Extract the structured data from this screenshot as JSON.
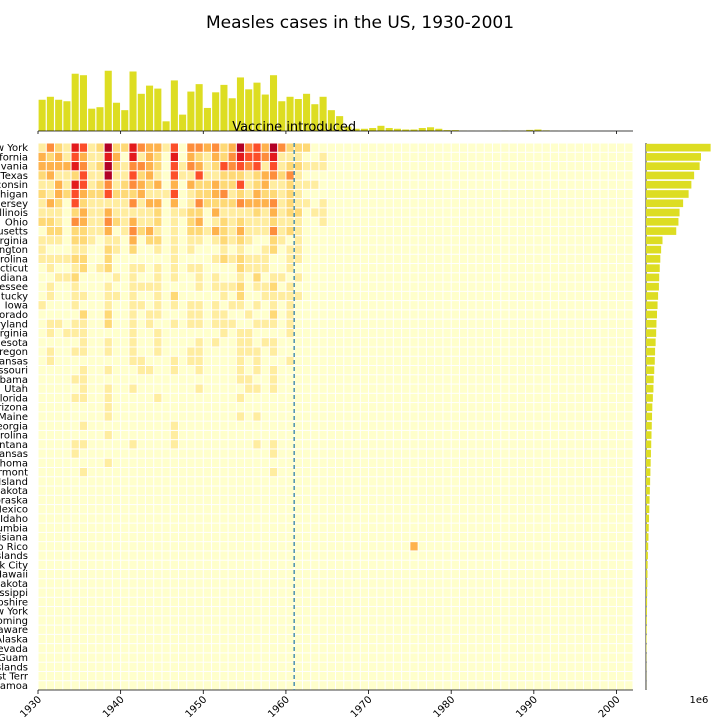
{
  "chart_data": {
    "type": "heatmap",
    "title": "Measles cases in the US, 1930-2001",
    "annotation": "Vaccine introduced",
    "vaccine_year": 1961,
    "x_range": [
      1930,
      2002
    ],
    "x_ticks": [
      1930,
      1940,
      1950,
      1960,
      1970,
      1980,
      1990,
      2000
    ],
    "offset_text": "1e6",
    "colors": {
      "bars": "#dddd22",
      "vline": "#4a90b0",
      "scale": [
        "#ffffcc",
        "#ffeda0",
        "#fed976",
        "#feb24c",
        "#fd8d3c",
        "#fc4e2a",
        "#e31a1c",
        "#b10026"
      ]
    },
    "states": [
      "New York",
      "California",
      "Pennsylvania",
      "Texas",
      "Wisconsin",
      "Michigan",
      "New Jersey",
      "Illinois",
      "Ohio",
      "Massachusetts",
      "Virginia",
      "Washington",
      "North Carolina",
      "Connecticut",
      "Indiana",
      "Tennessee",
      "Kentucky",
      "Iowa",
      "Colorado",
      "Maryland",
      "West Virginia",
      "Minnesota",
      "Oregon",
      "Kansas",
      "Missouri",
      "Alabama",
      "Utah",
      "Florida",
      "Arizona",
      "Maine",
      "Georgia",
      "South Carolina",
      "Montana",
      "Arkansas",
      "Oklahoma",
      "Vermont",
      "Rhode Island",
      "North Dakota",
      "Nebraska",
      "New Mexico",
      "Idaho",
      "District of Columbia",
      "Louisiana",
      "Puerto Rico",
      "Virgin Islands",
      "New York City",
      "Hawaii",
      "South Dakota",
      "Mississippi",
      "New Hampshire",
      "Upstate New York",
      "Wyoming",
      "Delaware",
      "Alaska",
      "Nevada",
      "Guam",
      "Northern Mariana Islands",
      "Pacific Trust Terr",
      "American Samoa"
    ],
    "state_totals": [
      2.35,
      2.0,
      1.95,
      1.75,
      1.65,
      1.55,
      1.35,
      1.22,
      1.18,
      1.1,
      0.6,
      0.55,
      0.52,
      0.5,
      0.48,
      0.47,
      0.44,
      0.42,
      0.4,
      0.38,
      0.37,
      0.35,
      0.33,
      0.32,
      0.3,
      0.28,
      0.27,
      0.25,
      0.23,
      0.22,
      0.21,
      0.2,
      0.19,
      0.18,
      0.17,
      0.16,
      0.15,
      0.14,
      0.13,
      0.12,
      0.11,
      0.1,
      0.09,
      0.08,
      0.07,
      0.06,
      0.055,
      0.05,
      0.045,
      0.04,
      0.035,
      0.03,
      0.025,
      0.02,
      0.015,
      0.01,
      0.008,
      0.005,
      0.003
    ],
    "yearly_totals": [
      {
        "year": 1930,
        "value": 0.42
      },
      {
        "year": 1931,
        "value": 0.46
      },
      {
        "year": 1932,
        "value": 0.42
      },
      {
        "year": 1933,
        "value": 0.4
      },
      {
        "year": 1934,
        "value": 0.77
      },
      {
        "year": 1935,
        "value": 0.75
      },
      {
        "year": 1936,
        "value": 0.3
      },
      {
        "year": 1937,
        "value": 0.32
      },
      {
        "year": 1938,
        "value": 0.81
      },
      {
        "year": 1939,
        "value": 0.38
      },
      {
        "year": 1940,
        "value": 0.28
      },
      {
        "year": 1941,
        "value": 0.8
      },
      {
        "year": 1942,
        "value": 0.5
      },
      {
        "year": 1943,
        "value": 0.61
      },
      {
        "year": 1944,
        "value": 0.57
      },
      {
        "year": 1945,
        "value": 0.13
      },
      {
        "year": 1946,
        "value": 0.68
      },
      {
        "year": 1947,
        "value": 0.22
      },
      {
        "year": 1948,
        "value": 0.53
      },
      {
        "year": 1949,
        "value": 0.63
      },
      {
        "year": 1950,
        "value": 0.31
      },
      {
        "year": 1951,
        "value": 0.52
      },
      {
        "year": 1952,
        "value": 0.62
      },
      {
        "year": 1953,
        "value": 0.44
      },
      {
        "year": 1954,
        "value": 0.72
      },
      {
        "year": 1955,
        "value": 0.56
      },
      {
        "year": 1956,
        "value": 0.65
      },
      {
        "year": 1957,
        "value": 0.49
      },
      {
        "year": 1958,
        "value": 0.75
      },
      {
        "year": 1959,
        "value": 0.4
      },
      {
        "year": 1960,
        "value": 0.46
      },
      {
        "year": 1961,
        "value": 0.43
      },
      {
        "year": 1962,
        "value": 0.5
      },
      {
        "year": 1963,
        "value": 0.36
      },
      {
        "year": 1964,
        "value": 0.46
      },
      {
        "year": 1965,
        "value": 0.28
      },
      {
        "year": 1966,
        "value": 0.2
      },
      {
        "year": 1967,
        "value": 0.06
      },
      {
        "year": 1968,
        "value": 0.03
      },
      {
        "year": 1969,
        "value": 0.03
      },
      {
        "year": 1970,
        "value": 0.04
      },
      {
        "year": 1971,
        "value": 0.07
      },
      {
        "year": 1972,
        "value": 0.04
      },
      {
        "year": 1973,
        "value": 0.03
      },
      {
        "year": 1974,
        "value": 0.02
      },
      {
        "year": 1975,
        "value": 0.02
      },
      {
        "year": 1976,
        "value": 0.04
      },
      {
        "year": 1977,
        "value": 0.05
      },
      {
        "year": 1978,
        "value": 0.03
      },
      {
        "year": 1979,
        "value": 0.012
      },
      {
        "year": 1980,
        "value": 0.012
      },
      {
        "year": 1981,
        "value": 0.003
      },
      {
        "year": 1982,
        "value": 0.002
      },
      {
        "year": 1983,
        "value": 0.001
      },
      {
        "year": 1984,
        "value": 0.002
      },
      {
        "year": 1985,
        "value": 0.002
      },
      {
        "year": 1986,
        "value": 0.005
      },
      {
        "year": 1987,
        "value": 0.003
      },
      {
        "year": 1988,
        "value": 0.003
      },
      {
        "year": 1989,
        "value": 0.015
      },
      {
        "year": 1990,
        "value": 0.02
      },
      {
        "year": 1991,
        "value": 0.008
      },
      {
        "year": 1992,
        "value": 0.002
      },
      {
        "year": 1993,
        "value": 0.0003
      },
      {
        "year": 1994,
        "value": 0.0008
      },
      {
        "year": 1995,
        "value": 0.0002
      },
      {
        "year": 1996,
        "value": 0.0004
      },
      {
        "year": 1997,
        "value": 0.0001
      },
      {
        "year": 1998,
        "value": 0.0001
      },
      {
        "year": 1999,
        "value": 0.0001
      },
      {
        "year": 2000,
        "value": 0.0001
      },
      {
        "year": 2001,
        "value": 0.0001
      }
    ],
    "top_bar_max": 0.82,
    "right_bar_max": 2.4
  }
}
